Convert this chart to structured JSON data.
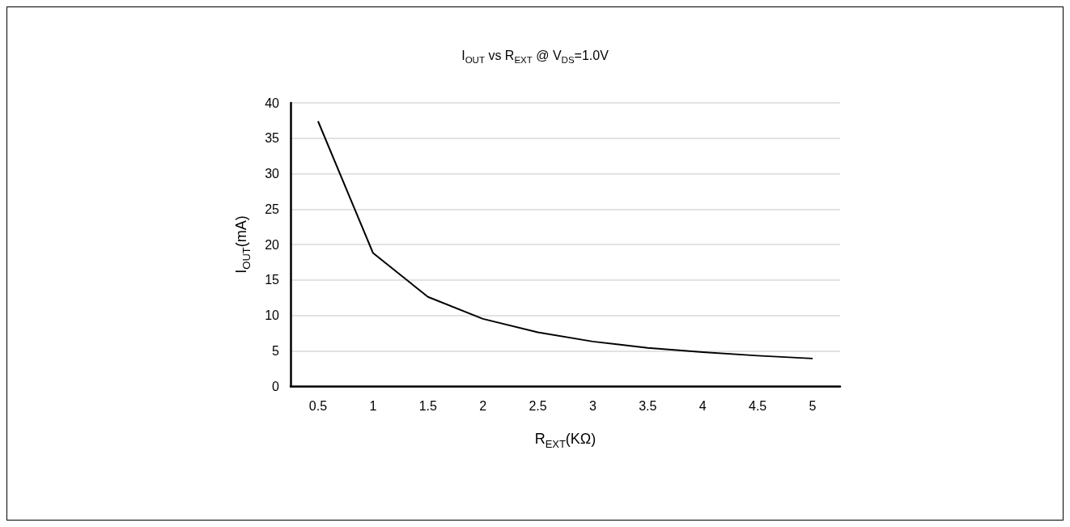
{
  "chart_data": {
    "type": "line",
    "title": "I$_{OUT}$ vs R$_{EXT}$ @ V$_{DS}$=1.0V",
    "xlabel": "R$_{EXT}$(KΩ)",
    "ylabel": "I$_{OUT}$(mA)",
    "categories": [
      "0.5",
      "1",
      "1.5",
      "2",
      "2.5",
      "3",
      "3.5",
      "4",
      "4.5",
      "5"
    ],
    "series": [
      {
        "color": "#000000",
        "values": [
          37.4,
          18.8,
          12.6,
          9.5,
          7.6,
          6.3,
          5.4,
          4.8,
          4.3,
          3.9
        ]
      }
    ],
    "ylim": [
      0,
      40
    ],
    "yticks": [
      0,
      5,
      10,
      15,
      20,
      25,
      30,
      35,
      40
    ],
    "grid": "y",
    "marker": "none",
    "line_style": "solid"
  }
}
